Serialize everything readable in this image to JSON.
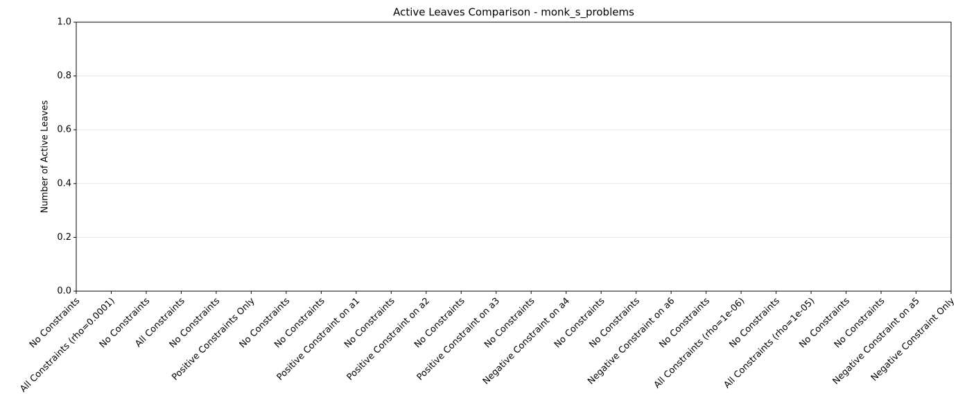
{
  "chart_data": {
    "type": "bar",
    "title": "Active Leaves Comparison - monk_s_problems",
    "y_label": "Number of Active Leaves",
    "categories": [
      "No Constraints",
      "All Constraints (rho=0.0001)",
      "No Constraints",
      "All Constraints",
      "No Constraints",
      "Positive Constraints Only",
      "No Constraints",
      "No Constraints",
      "Positive Constraint on a1",
      "No Constraints",
      "Positive Constraint on a2",
      "No Constraints",
      "Positive Constraint on a3",
      "No Constraints",
      "Negative Constraint on a4",
      "No Constraints",
      "No Constraints",
      "Negative Constraint on a6",
      "No Constraints",
      "All Constraints (rho=1e-06)",
      "No Constraints",
      "All Constraints (rho=1e-05)",
      "No Constraints",
      "No Constraints",
      "Negative Constraint on a5",
      "Negative Constraint Only"
    ],
    "values": [
      0,
      0,
      0,
      0,
      0,
      0,
      0,
      0,
      0,
      0,
      0,
      0,
      0,
      0,
      0,
      0,
      0,
      0,
      0,
      0,
      0,
      0,
      0,
      0,
      0,
      0
    ],
    "color": "#1f77b4",
    "ylim": [
      0,
      1
    ],
    "yticks": [
      {
        "value": 0,
        "label": "0.0"
      },
      {
        "value": 0.2,
        "label": "0.2"
      },
      {
        "value": 0.4,
        "label": "0.4"
      },
      {
        "value": 0.6,
        "label": "0.6"
      },
      {
        "value": 0.8,
        "label": "0.8"
      },
      {
        "value": 1,
        "label": "1.0"
      }
    ],
    "grid": true
  }
}
